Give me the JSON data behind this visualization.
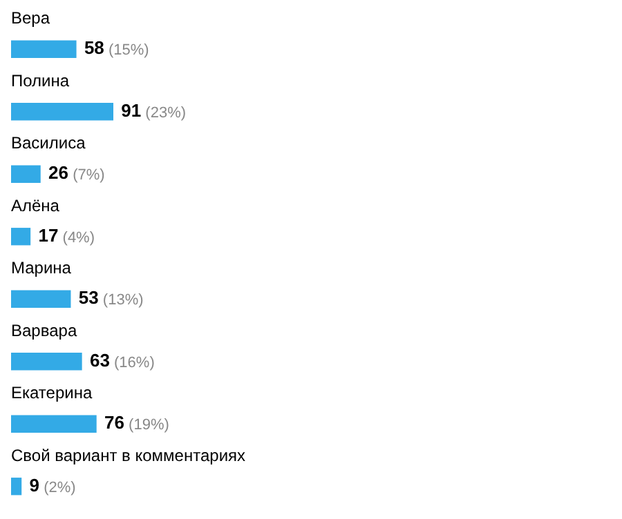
{
  "chart_data": {
    "type": "bar",
    "orientation": "horizontal",
    "categories": [
      "Вера",
      "Полина",
      "Василиса",
      "Алёна",
      "Марина",
      "Варвара",
      "Екатерина",
      "Свой вариант в комментариях"
    ],
    "values": [
      58,
      91,
      26,
      17,
      53,
      63,
      76,
      9
    ],
    "value_labels": [
      "58 (15%)",
      "91 (23%)",
      "26 (7%)",
      "17 (4%)",
      "53 (13%)",
      "63 (16%)",
      "76 (19%)",
      "9 (2%)"
    ],
    "color": "#33aae6"
  }
}
